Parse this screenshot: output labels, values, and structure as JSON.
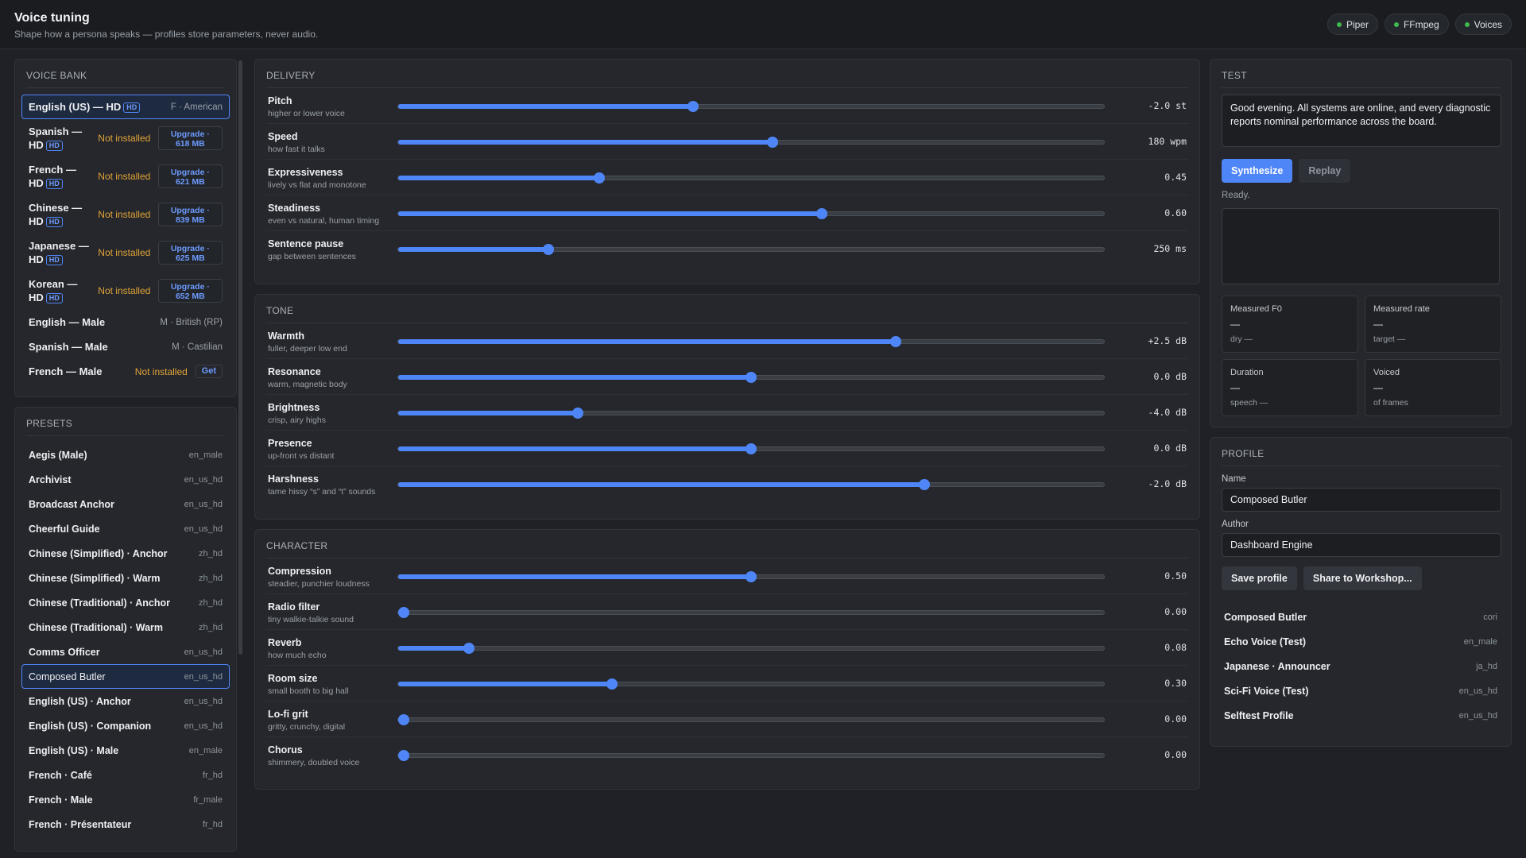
{
  "header": {
    "title": "Voice tuning",
    "subtitle": "Shape how a persona speaks — profiles store parameters, never audio.",
    "status": [
      {
        "label": "Piper",
        "color": "#3fb950"
      },
      {
        "label": "FFmpeg",
        "color": "#3fb950"
      },
      {
        "label": "Voices",
        "color": "#3fb950"
      }
    ]
  },
  "voice_bank": {
    "title": "VOICE BANK",
    "items": [
      {
        "name": "English (US) — HD",
        "hd": "HD",
        "right": "F · American",
        "selected": true
      },
      {
        "name": "Spanish —",
        "name2": "HD",
        "hd": "HD",
        "status": "Not installed",
        "action": "Upgrade ·",
        "size": "618 MB"
      },
      {
        "name": "French —",
        "name2": "HD",
        "hd": "HD",
        "status": "Not installed",
        "action": "Upgrade ·",
        "size": "621 MB"
      },
      {
        "name": "Chinese —",
        "name2": "HD",
        "hd": "HD",
        "status": "Not installed",
        "action": "Upgrade ·",
        "size": "839 MB"
      },
      {
        "name": "Japanese —",
        "name2": "HD",
        "hd": "HD",
        "status": "Not installed",
        "action": "Upgrade ·",
        "size": "625 MB"
      },
      {
        "name": "Korean —",
        "name2": "HD",
        "hd": "HD",
        "status": "Not installed",
        "action": "Upgrade ·",
        "size": "652 MB"
      },
      {
        "name": "English — Male",
        "right": "M · British (RP)"
      },
      {
        "name": "Spanish — Male",
        "right": "M · Castilian"
      },
      {
        "name": "French — Male",
        "status": "Not installed",
        "get": "Get"
      }
    ]
  },
  "presets": {
    "title": "PRESETS",
    "items": [
      {
        "name": "Aegis (Male)",
        "code": "en_male"
      },
      {
        "name": "Archivist",
        "code": "en_us_hd"
      },
      {
        "name": "Broadcast Anchor",
        "code": "en_us_hd"
      },
      {
        "name": "Cheerful Guide",
        "code": "en_us_hd"
      },
      {
        "name": "Chinese (Simplified) · Anchor",
        "code": "zh_hd"
      },
      {
        "name": "Chinese (Simplified) · Warm",
        "code": "zh_hd"
      },
      {
        "name": "Chinese (Traditional) · Anchor",
        "code": "zh_hd"
      },
      {
        "name": "Chinese (Traditional) · Warm",
        "code": "zh_hd"
      },
      {
        "name": "Comms Officer",
        "code": "en_us_hd"
      },
      {
        "name": "Composed Butler",
        "code": "en_us_hd",
        "selected": true
      },
      {
        "name": "English (US) · Anchor",
        "code": "en_us_hd"
      },
      {
        "name": "English (US) · Companion",
        "code": "en_us_hd"
      },
      {
        "name": "English (US) · Male",
        "code": "en_male"
      },
      {
        "name": "French · Café",
        "code": "fr_hd"
      },
      {
        "name": "French · Male",
        "code": "fr_male"
      },
      {
        "name": "French · Présentateur",
        "code": "fr_hd"
      }
    ]
  },
  "sections": [
    {
      "title": "DELIVERY",
      "sliders": [
        {
          "label": "Pitch",
          "desc": "higher or lower voice",
          "value": "-2.0 st",
          "fraction": 0.418
        },
        {
          "label": "Speed",
          "desc": "how fast it talks",
          "value": "180 wpm",
          "fraction": 0.53
        },
        {
          "label": "Expressiveness",
          "desc": "lively vs flat and monotone",
          "value": "0.45",
          "fraction": 0.285
        },
        {
          "label": "Steadiness",
          "desc": "even vs natural, human timing",
          "value": "0.60",
          "fraction": 0.6
        },
        {
          "label": "Sentence pause",
          "desc": "gap between sentences",
          "value": "250 ms",
          "fraction": 0.213
        }
      ]
    },
    {
      "title": "TONE",
      "sliders": [
        {
          "label": "Warmth",
          "desc": "fuller, deeper low end",
          "value": "+2.5 dB",
          "fraction": 0.705
        },
        {
          "label": "Resonance",
          "desc": "warm, magnetic body",
          "value": "0.0 dB",
          "fraction": 0.5
        },
        {
          "label": "Brightness",
          "desc": "crisp, airy highs",
          "value": "-4.0 dB",
          "fraction": 0.255
        },
        {
          "label": "Presence",
          "desc": "up-front vs distant",
          "value": "0.0 dB",
          "fraction": 0.5
        },
        {
          "label": "Harshness",
          "desc": "tame hissy “s” and “t” sounds",
          "value": "-2.0 dB",
          "fraction": 0.746
        }
      ]
    },
    {
      "title": "CHARACTER",
      "sliders": [
        {
          "label": "Compression",
          "desc": "steadier, punchier loudness",
          "value": "0.50",
          "fraction": 0.5
        },
        {
          "label": "Radio filter",
          "desc": "tiny walkie-talkie sound",
          "value": "0.00",
          "fraction": 0.0
        },
        {
          "label": "Reverb",
          "desc": "how much echo",
          "value": "0.08",
          "fraction": 0.1
        },
        {
          "label": "Room size",
          "desc": "small booth to big hall",
          "value": "0.30",
          "fraction": 0.303
        },
        {
          "label": "Lo-fi grit",
          "desc": "gritty, crunchy, digital",
          "value": "0.00",
          "fraction": 0.0
        },
        {
          "label": "Chorus",
          "desc": "shimmery, doubled voice",
          "value": "0.00",
          "fraction": 0.0
        }
      ]
    }
  ],
  "test": {
    "title": "TEST",
    "text": "Good evening. All systems are online, and every diagnostic reports nominal performance across the board.",
    "synthesize_label": "Synthesize",
    "replay_label": "Replay",
    "status": "Ready.",
    "metrics": [
      {
        "label": "Measured F0",
        "value": "—",
        "sub": "dry —"
      },
      {
        "label": "Measured rate",
        "value": "—",
        "sub": "target —"
      },
      {
        "label": "Duration",
        "value": "—",
        "sub": "speech —"
      },
      {
        "label": "Voiced",
        "value": "—",
        "sub": "of frames"
      }
    ]
  },
  "profile": {
    "title": "PROFILE",
    "name_label": "Name",
    "name_value": "Composed Butler",
    "author_label": "Author",
    "author_value": "Dashboard Engine",
    "save_label": "Save profile",
    "share_label": "Share to Workshop...",
    "saved": [
      {
        "name": "Composed Butler",
        "code": "cori"
      },
      {
        "name": "Echo Voice (Test)",
        "code": "en_male"
      },
      {
        "name": "Japanese · Announcer",
        "code": "ja_hd"
      },
      {
        "name": "Sci-Fi Voice (Test)",
        "code": "en_us_hd"
      },
      {
        "name": "Selftest Profile",
        "code": "en_us_hd"
      }
    ]
  }
}
